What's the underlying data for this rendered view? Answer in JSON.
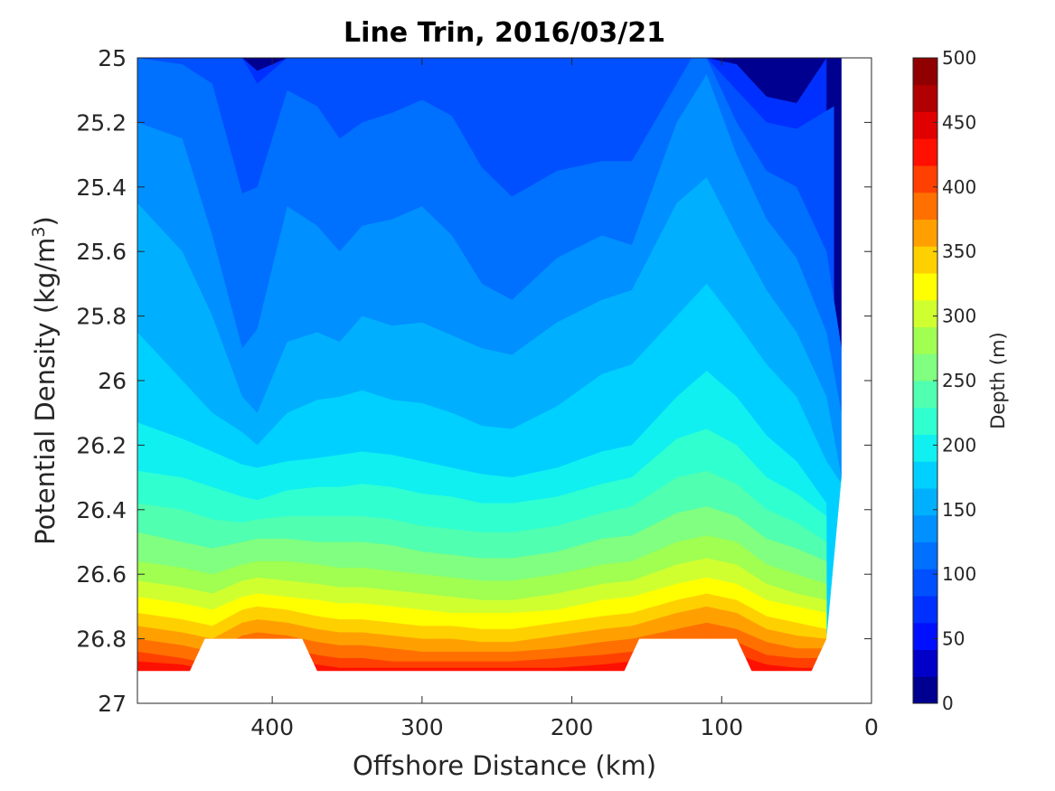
{
  "chart_data": {
    "type": "heatmap",
    "subtype": "filled-contour",
    "title": "Line Trin, 2016/03/21",
    "xlabel": "Offshore Distance (km)",
    "ylabel": "Potential Density (kg/m",
    "ylabel_superscript": "3",
    "ylabel_suffix": ")",
    "x_direction": "reversed",
    "xlim": [
      490,
      0
    ],
    "ylim": [
      25,
      27
    ],
    "y_direction": "reversed",
    "x_ticks": [
      400,
      300,
      200,
      100,
      0
    ],
    "x_tick_labels": [
      "400",
      "300",
      "200",
      "100",
      "0"
    ],
    "y_ticks": [
      25,
      25.2,
      25.4,
      25.6,
      25.8,
      26,
      26.2,
      26.4,
      26.6,
      26.8,
      27
    ],
    "y_tick_labels": [
      "25",
      "25.2",
      "25.4",
      "25.6",
      "25.8",
      "26",
      "26.2",
      "26.4",
      "26.6",
      "26.8",
      "27"
    ],
    "colorbar": {
      "label": "Depth (m)",
      "range": [
        0,
        500
      ],
      "ticks": [
        0,
        50,
        100,
        150,
        200,
        250,
        300,
        350,
        400,
        450,
        500
      ],
      "tick_labels": [
        "0",
        "50",
        "100",
        "150",
        "200",
        "250",
        "300",
        "350",
        "400",
        "450",
        "500"
      ],
      "levels": [
        0,
        25,
        50,
        75,
        100,
        125,
        150,
        175,
        200,
        225,
        250,
        275,
        300,
        325,
        350,
        375,
        400,
        425,
        450,
        475,
        500
      ],
      "colors": [
        "#000090",
        "#0000c8",
        "#0010ff",
        "#0030ff",
        "#0050ff",
        "#0070ff",
        "#0090ff",
        "#00b0ff",
        "#00d0ff",
        "#10f0f0",
        "#30ffd0",
        "#50ffb0",
        "#80ff80",
        "#a0ff50",
        "#d0ff30",
        "#ffff00",
        "#ffd000",
        "#ffa000",
        "#ff7000",
        "#ff4000",
        "#ff1000",
        "#e00000",
        "#b00000",
        "#900000"
      ]
    },
    "isopycnal_depths": [
      {
        "depth": 50,
        "x": [
          490,
          420,
          410,
          390,
          370,
          340,
          310,
          290,
          260,
          240,
          210,
          170,
          130,
          110,
          90,
          70,
          50,
          30
        ],
        "y": [
          25.0,
          25.0,
          25.04,
          25.0,
          25.0,
          25.0,
          25.0,
          25.0,
          25.0,
          25.0,
          25.0,
          25.0,
          25.0,
          25.0,
          25.02,
          25.12,
          25.14,
          25.0
        ]
      },
      {
        "depth": 75,
        "x": [
          490,
          420,
          410,
          390,
          370,
          340,
          310,
          290,
          260,
          240,
          210,
          170,
          130,
          110,
          90,
          70,
          50,
          25
        ],
        "y": [
          25.0,
          25.0,
          25.08,
          25.0,
          25.0,
          25.0,
          25.0,
          25.0,
          25.0,
          25.0,
          25.0,
          25.0,
          25.0,
          25.0,
          25.1,
          25.2,
          25.22,
          25.15
        ]
      },
      {
        "depth": 100,
        "x": [
          490,
          460,
          440,
          420,
          410,
          390,
          370,
          355,
          340,
          320,
          300,
          280,
          260,
          240,
          210,
          180,
          160,
          120,
          110,
          90,
          70,
          50,
          30,
          20
        ],
        "y": [
          25.0,
          25.02,
          25.08,
          25.42,
          25.4,
          25.1,
          25.15,
          25.25,
          25.2,
          25.17,
          25.13,
          25.18,
          25.34,
          25.43,
          25.35,
          25.32,
          25.32,
          25.0,
          25.0,
          25.2,
          25.35,
          25.4,
          25.6,
          25.9
        ]
      },
      {
        "depth": 125,
        "x": [
          490,
          460,
          440,
          420,
          410,
          390,
          370,
          355,
          340,
          320,
          300,
          280,
          260,
          240,
          210,
          180,
          160,
          130,
          110,
          90,
          70,
          50,
          30,
          20
        ],
        "y": [
          25.2,
          25.25,
          25.55,
          25.9,
          25.84,
          25.46,
          25.52,
          25.6,
          25.52,
          25.5,
          25.46,
          25.55,
          25.7,
          25.75,
          25.62,
          25.55,
          25.58,
          25.2,
          25.05,
          25.3,
          25.5,
          25.62,
          25.85,
          26.1
        ]
      },
      {
        "depth": 150,
        "x": [
          490,
          460,
          440,
          420,
          410,
          390,
          370,
          355,
          340,
          320,
          300,
          280,
          260,
          240,
          210,
          180,
          160,
          130,
          110,
          90,
          70,
          50,
          30,
          20
        ],
        "y": [
          25.45,
          25.6,
          25.8,
          26.05,
          26.1,
          25.88,
          25.85,
          25.88,
          25.8,
          25.83,
          25.82,
          25.86,
          25.9,
          25.92,
          25.82,
          25.75,
          25.72,
          25.45,
          25.37,
          25.55,
          25.72,
          25.85,
          26.05,
          26.3
        ]
      },
      {
        "depth": 175,
        "x": [
          490,
          460,
          440,
          420,
          410,
          390,
          370,
          355,
          340,
          320,
          300,
          280,
          260,
          240,
          210,
          180,
          160,
          130,
          110,
          90,
          70,
          50,
          30,
          20
        ],
        "y": [
          25.85,
          26.0,
          26.1,
          26.16,
          26.2,
          26.1,
          26.06,
          26.05,
          26.03,
          26.06,
          26.07,
          26.1,
          26.14,
          26.15,
          26.08,
          25.98,
          25.95,
          25.8,
          25.7,
          25.82,
          25.95,
          26.05,
          26.25,
          26.32
        ]
      },
      {
        "depth": 200,
        "x": [
          490,
          460,
          440,
          420,
          410,
          390,
          370,
          355,
          340,
          320,
          300,
          280,
          260,
          240,
          210,
          180,
          160,
          130,
          110,
          90,
          70,
          50,
          30
        ],
        "y": [
          26.13,
          26.18,
          26.22,
          26.26,
          26.27,
          26.25,
          26.24,
          26.23,
          26.22,
          26.23,
          26.25,
          26.27,
          26.29,
          26.3,
          26.27,
          26.22,
          26.2,
          26.05,
          25.97,
          26.05,
          26.17,
          26.25,
          26.38
        ]
      },
      {
        "depth": 225,
        "x": [
          490,
          460,
          440,
          420,
          410,
          390,
          370,
          355,
          340,
          320,
          300,
          280,
          260,
          240,
          210,
          180,
          160,
          130,
          110,
          90,
          70,
          50,
          30
        ],
        "y": [
          26.28,
          26.3,
          26.33,
          26.36,
          26.37,
          26.34,
          26.33,
          26.33,
          26.32,
          26.33,
          26.35,
          26.36,
          26.38,
          26.38,
          26.36,
          26.32,
          26.3,
          26.18,
          26.15,
          26.2,
          26.3,
          26.35,
          26.42
        ]
      },
      {
        "depth": 250,
        "x": [
          490,
          460,
          440,
          420,
          410,
          390,
          370,
          355,
          340,
          320,
          300,
          280,
          260,
          240,
          210,
          180,
          160,
          130,
          110,
          90,
          70,
          50,
          30
        ],
        "y": [
          26.38,
          26.4,
          26.43,
          26.44,
          26.43,
          26.42,
          26.42,
          26.42,
          26.42,
          26.43,
          26.45,
          26.46,
          26.47,
          26.47,
          26.45,
          26.41,
          26.39,
          26.3,
          26.28,
          26.32,
          26.4,
          26.44,
          26.5
        ]
      },
      {
        "depth": 275,
        "x": [
          490,
          460,
          440,
          420,
          410,
          390,
          370,
          355,
          340,
          320,
          300,
          280,
          260,
          240,
          210,
          180,
          160,
          130,
          110,
          90,
          70,
          50,
          30
        ],
        "y": [
          26.47,
          26.5,
          26.52,
          26.5,
          26.49,
          26.49,
          26.5,
          26.5,
          26.5,
          26.51,
          26.53,
          26.54,
          26.55,
          26.55,
          26.53,
          26.49,
          26.48,
          26.41,
          26.39,
          26.42,
          26.49,
          26.52,
          26.56
        ]
      },
      {
        "depth": 300,
        "x": [
          490,
          460,
          440,
          420,
          410,
          390,
          370,
          355,
          340,
          320,
          300,
          280,
          260,
          240,
          210,
          180,
          160,
          130,
          110,
          90,
          70,
          50,
          30
        ],
        "y": [
          26.56,
          26.58,
          26.6,
          26.57,
          26.56,
          26.56,
          26.57,
          26.58,
          26.58,
          26.59,
          26.6,
          26.61,
          26.62,
          26.62,
          26.6,
          26.57,
          26.56,
          26.5,
          26.48,
          26.5,
          26.57,
          26.6,
          26.63
        ]
      },
      {
        "depth": 325,
        "x": [
          490,
          460,
          440,
          420,
          410,
          390,
          370,
          355,
          340,
          320,
          300,
          280,
          260,
          240,
          210,
          180,
          160,
          130,
          110,
          90,
          70,
          50,
          30
        ],
        "y": [
          26.62,
          26.64,
          26.66,
          26.62,
          26.61,
          26.62,
          26.63,
          26.64,
          26.64,
          26.65,
          26.66,
          26.67,
          26.68,
          26.68,
          26.66,
          26.63,
          26.62,
          26.57,
          26.55,
          26.57,
          26.63,
          26.66,
          26.68
        ]
      },
      {
        "depth": 350,
        "x": [
          490,
          460,
          440,
          420,
          410,
          390,
          370,
          355,
          340,
          320,
          300,
          280,
          260,
          240,
          210,
          180,
          160,
          130,
          110,
          90,
          70,
          50,
          30
        ],
        "y": [
          26.67,
          26.69,
          26.71,
          26.67,
          26.66,
          26.67,
          26.68,
          26.69,
          26.69,
          26.7,
          26.71,
          26.72,
          26.72,
          26.72,
          26.71,
          26.68,
          26.67,
          26.63,
          26.61,
          26.63,
          26.68,
          26.7,
          26.72
        ]
      },
      {
        "depth": 375,
        "x": [
          490,
          460,
          440,
          420,
          410,
          390,
          370,
          355,
          340,
          320,
          300,
          280,
          260,
          240,
          210,
          180,
          160,
          130,
          110,
          90,
          70,
          50,
          30
        ],
        "y": [
          26.72,
          26.74,
          26.76,
          26.71,
          26.7,
          26.71,
          26.73,
          26.74,
          26.74,
          26.75,
          26.76,
          26.76,
          26.77,
          26.77,
          26.75,
          26.73,
          26.72,
          26.68,
          26.66,
          26.68,
          26.73,
          26.75,
          26.77
        ]
      },
      {
        "depth": 400,
        "x": [
          490,
          460,
          440,
          420,
          410,
          390,
          370,
          355,
          340,
          320,
          300,
          280,
          260,
          240,
          210,
          180,
          160,
          130,
          110,
          90,
          70,
          50,
          30
        ],
        "y": [
          26.76,
          26.78,
          26.8,
          26.75,
          26.74,
          26.75,
          26.77,
          26.78,
          26.78,
          26.79,
          26.8,
          26.8,
          26.81,
          26.81,
          26.79,
          26.77,
          26.76,
          26.72,
          26.7,
          26.72,
          26.77,
          26.79,
          26.8
        ]
      },
      {
        "depth": 425,
        "x": [
          490,
          460,
          440,
          420,
          410,
          390,
          370,
          355,
          340,
          320,
          300,
          280,
          260,
          240,
          210,
          180,
          160,
          130,
          110,
          90,
          70,
          50,
          30
        ],
        "y": [
          26.8,
          26.82,
          26.84,
          26.79,
          26.78,
          26.79,
          26.81,
          26.82,
          26.82,
          26.83,
          26.84,
          26.84,
          26.84,
          26.84,
          26.83,
          26.81,
          26.8,
          26.77,
          26.75,
          26.77,
          26.81,
          26.83,
          26.83
        ]
      },
      {
        "depth": 450,
        "x": [
          490,
          460,
          440,
          420,
          410,
          390,
          370,
          355,
          340,
          320,
          300,
          280,
          260,
          240,
          210,
          180,
          160,
          130,
          110,
          90,
          70,
          50,
          30
        ],
        "y": [
          26.84,
          26.86,
          26.88,
          26.83,
          26.82,
          26.83,
          26.85,
          26.86,
          26.86,
          26.87,
          26.87,
          26.87,
          26.87,
          26.87,
          26.86,
          26.85,
          26.84,
          26.81,
          26.8,
          26.81,
          26.85,
          26.86,
          26.86
        ]
      },
      {
        "depth": 475,
        "x": [
          490,
          460,
          440,
          420,
          410,
          390,
          370,
          355,
          340,
          320,
          300,
          280,
          260,
          240,
          210,
          180,
          160,
          130,
          110,
          90,
          70,
          50,
          30
        ],
        "y": [
          26.87,
          26.88,
          26.9,
          26.86,
          26.86,
          26.86,
          26.88,
          26.89,
          26.89,
          26.89,
          26.89,
          26.89,
          26.89,
          26.89,
          26.89,
          26.88,
          26.87,
          26.85,
          26.84,
          26.85,
          26.88,
          26.89,
          26.89
        ]
      }
    ],
    "no_data_regions": [
      {
        "x": [
          490,
          455,
          445,
          380,
          370,
          165,
          155,
          90,
          80,
          40,
          30,
          20,
          20,
          0,
          0,
          490
        ],
        "y": [
          26.9,
          26.9,
          26.8,
          26.8,
          26.9,
          26.9,
          26.8,
          26.8,
          26.9,
          26.9,
          26.8,
          26.3,
          25.0,
          25.0,
          27.0,
          27.0
        ]
      }
    ],
    "grid": false,
    "colorbar_position": "right"
  }
}
